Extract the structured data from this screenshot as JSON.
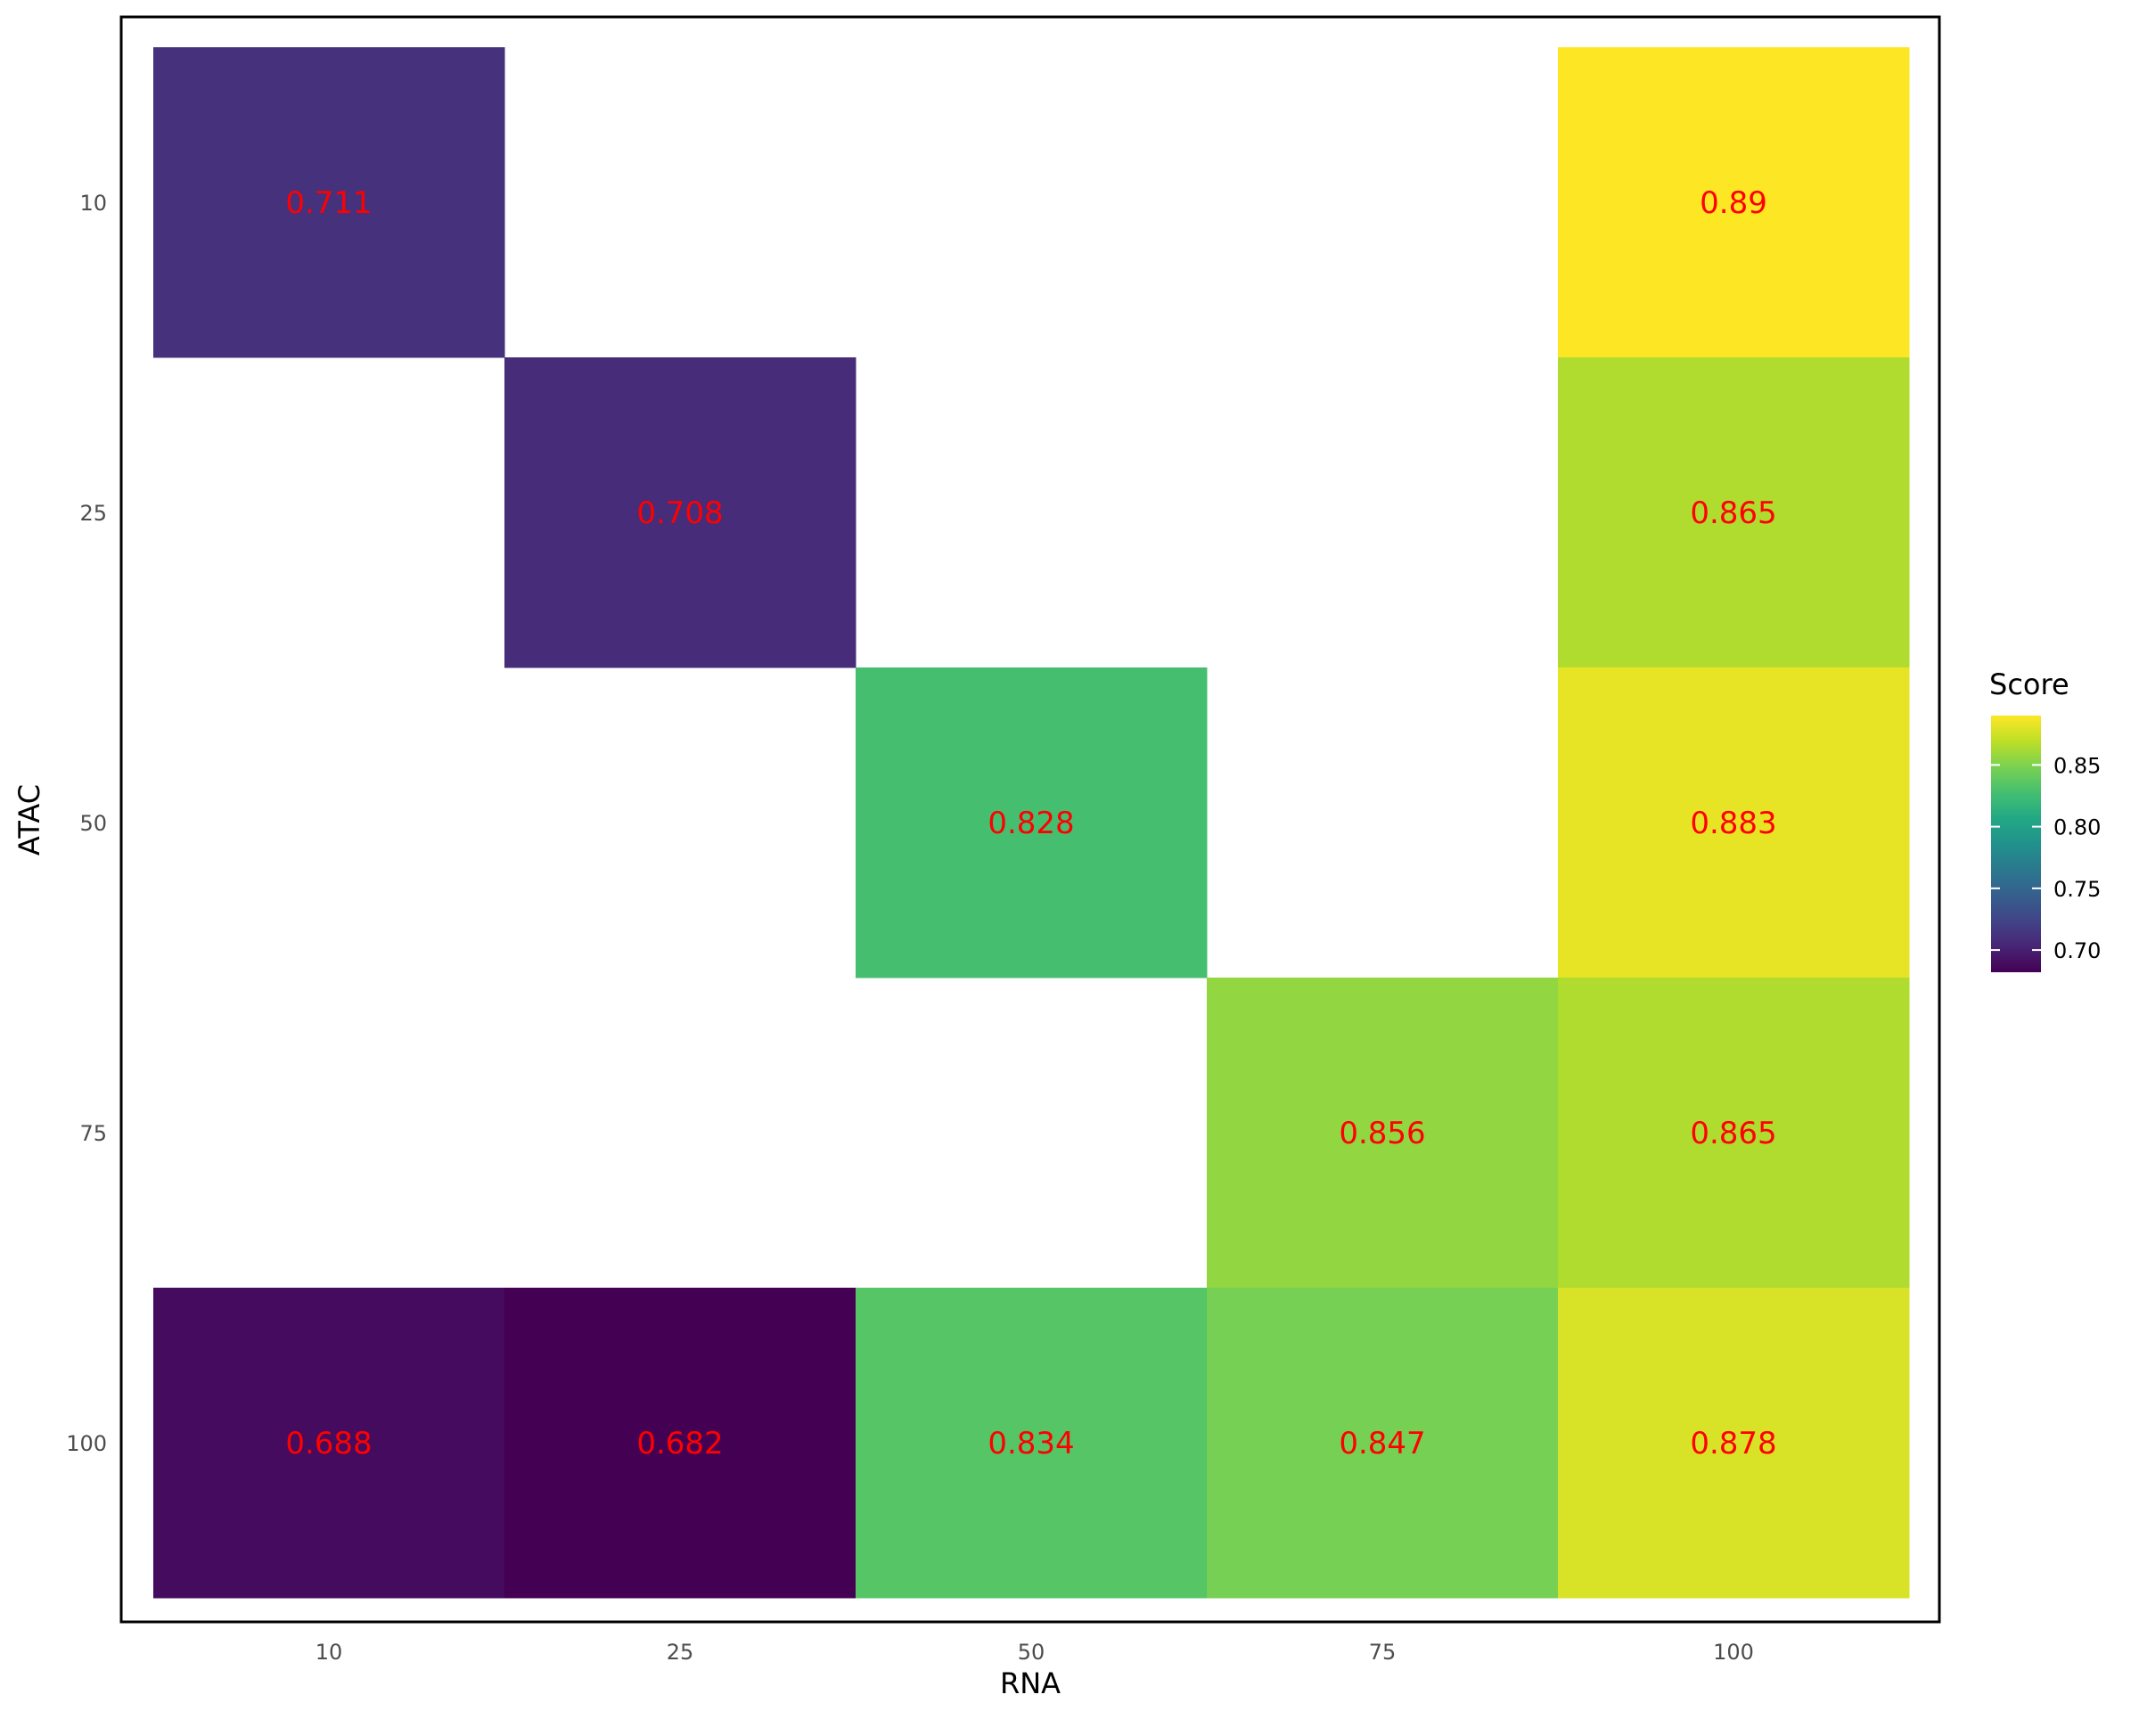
{
  "chart_data": {
    "type": "heatmap",
    "x_label": "RNA",
    "y_label": "ATAC",
    "x_categories": [
      "10",
      "25",
      "50",
      "75",
      "100"
    ],
    "y_categories": [
      "10",
      "25",
      "50",
      "75",
      "100"
    ],
    "cells": [
      {
        "x": "10",
        "y": "10",
        "value": 0.711,
        "label": "0.711"
      },
      {
        "x": "100",
        "y": "10",
        "value": 0.89,
        "label": "0.89"
      },
      {
        "x": "25",
        "y": "25",
        "value": 0.708,
        "label": "0.708"
      },
      {
        "x": "100",
        "y": "25",
        "value": 0.865,
        "label": "0.865"
      },
      {
        "x": "50",
        "y": "50",
        "value": 0.828,
        "label": "0.828"
      },
      {
        "x": "100",
        "y": "50",
        "value": 0.883,
        "label": "0.883"
      },
      {
        "x": "75",
        "y": "75",
        "value": 0.856,
        "label": "0.856"
      },
      {
        "x": "100",
        "y": "75",
        "value": 0.865,
        "label": "0.865"
      },
      {
        "x": "10",
        "y": "100",
        "value": 0.688,
        "label": "0.688"
      },
      {
        "x": "25",
        "y": "100",
        "value": 0.682,
        "label": "0.682"
      },
      {
        "x": "50",
        "y": "100",
        "value": 0.834,
        "label": "0.834"
      },
      {
        "x": "75",
        "y": "100",
        "value": 0.847,
        "label": "0.847"
      },
      {
        "x": "100",
        "y": "100",
        "value": 0.878,
        "label": "0.878"
      }
    ],
    "legend": {
      "title": "Score",
      "min": 0.682,
      "max": 0.89,
      "ticks": [
        {
          "value": 0.7,
          "label": "0.70"
        },
        {
          "value": 0.75,
          "label": "0.75"
        },
        {
          "value": 0.8,
          "label": "0.80"
        },
        {
          "value": 0.85,
          "label": "0.85"
        }
      ],
      "palette": "viridis",
      "placement": "right"
    },
    "label_color": "#ff0000",
    "grid": false
  }
}
